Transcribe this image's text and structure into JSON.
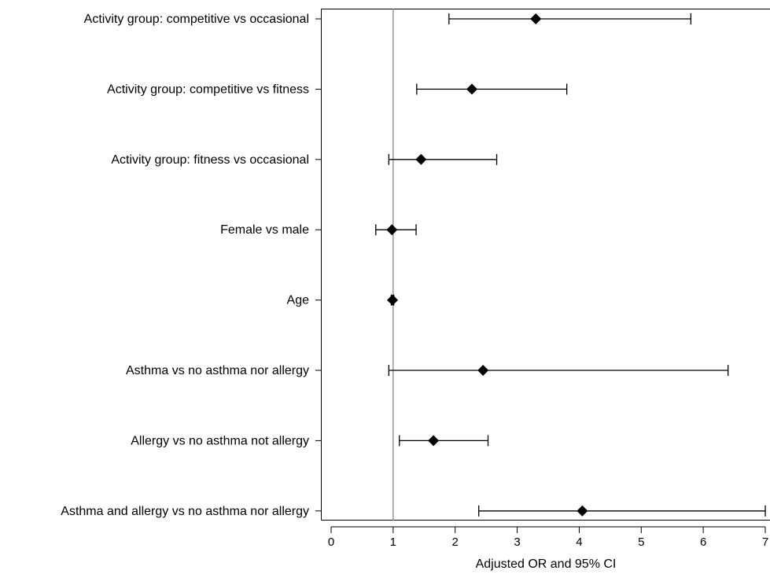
{
  "chart_data": {
    "type": "scatter",
    "xlabel": "Adjusted OR and 95% CI",
    "xlim": [
      0,
      7
    ],
    "xticks": [
      0,
      1,
      2,
      3,
      4,
      5,
      6,
      7
    ],
    "reference_line": 1,
    "grid": false,
    "rows": [
      {
        "label": "Activity group: competitive vs occasional",
        "or": 3.3,
        "lower": 1.9,
        "upper": 5.8
      },
      {
        "label": "Activity group: competitive vs fitness",
        "or": 2.27,
        "lower": 1.38,
        "upper": 3.8
      },
      {
        "label": "Activity group: fitness vs occasional",
        "or": 1.45,
        "lower": 0.93,
        "upper": 2.67
      },
      {
        "label": "Female vs male",
        "or": 0.98,
        "lower": 0.72,
        "upper": 1.37
      },
      {
        "label": "Age",
        "or": 0.99,
        "lower": 0.97,
        "upper": 1.01
      },
      {
        "label": "Asthma vs no asthma nor allergy",
        "or": 2.45,
        "lower": 0.93,
        "upper": 6.4
      },
      {
        "label": "Allergy vs no asthma not allergy",
        "or": 1.65,
        "lower": 1.1,
        "upper": 2.53
      },
      {
        "label": "Asthma and allergy vs no asthma nor allergy",
        "or": 4.05,
        "lower": 2.38,
        "upper": 7.0
      }
    ]
  }
}
